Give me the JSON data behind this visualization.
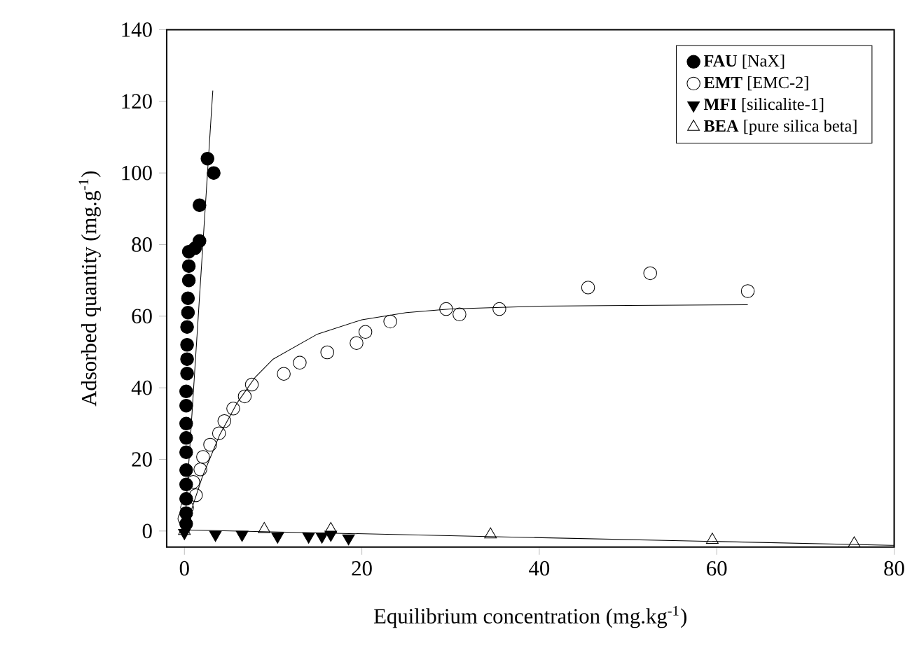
{
  "chart_data": {
    "type": "scatter",
    "xlabel": "Equilibrium concentration (mg.kg$^{-1}$)",
    "ylabel": "Adsorbed quantity (mg.g$^{-1}$)",
    "xlim": [
      -2,
      80
    ],
    "ylim": [
      -4.5,
      140
    ],
    "xticks": [
      0,
      20,
      40,
      60,
      80
    ],
    "yticks": [
      0,
      20,
      40,
      60,
      80,
      100,
      120,
      140
    ],
    "grid": false,
    "legend": "top right",
    "series": [
      {
        "name": "**FAU** [NaX]",
        "color": "#000000",
        "marker": "circle",
        "x": [
          0.2,
          0.2,
          0.2,
          0.2,
          0.2,
          0.2,
          0.2,
          0.2,
          0.2,
          0.2,
          0.3,
          0.3,
          0.3,
          0.3,
          0.4,
          0.4,
          0.5,
          0.5,
          0.5,
          1.2,
          1.7,
          1.7,
          2.6,
          3.3
        ],
        "values": [
          2,
          5,
          9,
          13,
          17,
          22,
          26,
          30,
          35,
          39,
          44,
          48,
          52,
          57,
          61,
          65,
          70,
          74,
          78,
          79,
          81,
          91,
          104,
          100
        ]
      },
      {
        "name": "**EMT** [EMC-2]",
        "color": "#000000",
        "marker": "circle-open",
        "x": [
          0,
          0.3,
          1.3,
          1,
          1.8,
          2.1,
          2.9,
          3.9,
          4.5,
          5.5,
          6.8,
          7.6,
          11.2,
          13,
          16.1,
          19.4,
          20.4,
          23.2,
          29.5,
          31,
          35.5,
          45.5,
          52.5,
          63.5
        ],
        "values": [
          3.5,
          6.6,
          10,
          13.7,
          17.2,
          20.7,
          24.1,
          27.3,
          30.7,
          34.2,
          37.6,
          40.9,
          43.9,
          47,
          49.9,
          52.5,
          55.6,
          58.5,
          62,
          60.5,
          62,
          68,
          72,
          67
        ]
      },
      {
        "name": "**MFI** [silicalite-1]",
        "color": "#000000",
        "marker": "triangle-down",
        "x": [
          0,
          3.5,
          6.5,
          10.5,
          14,
          15.5,
          16.5,
          18.5
        ],
        "values": [
          -0.5,
          -1,
          -1,
          -1.5,
          -1.5,
          -1.5,
          -1,
          -2
        ]
      },
      {
        "name": "**BEA** [pure silica beta]",
        "color": "#000000",
        "marker": "triangle-open",
        "x": [
          0,
          9,
          16.5,
          34.5,
          59.5,
          75.5
        ],
        "values": [
          0,
          0.5,
          0.5,
          -1,
          -2.5,
          -3.5
        ]
      },
      {
        "type": "line",
        "color": "#000000",
        "x": [
          0,
          3.2
        ],
        "values": [
          0,
          123
        ]
      },
      {
        "type": "line",
        "color": "#000000",
        "x": [
          0,
          2,
          4,
          6,
          8,
          10,
          15,
          20,
          25,
          30,
          40,
          50,
          63.5
        ],
        "values": [
          0,
          15,
          27,
          36,
          43,
          48,
          55,
          59,
          61,
          62,
          62.8,
          63,
          63.2
        ]
      },
      {
        "type": "line",
        "color": "#000000",
        "x": [
          0,
          80
        ],
        "values": [
          0.3,
          -4
        ]
      }
    ]
  }
}
